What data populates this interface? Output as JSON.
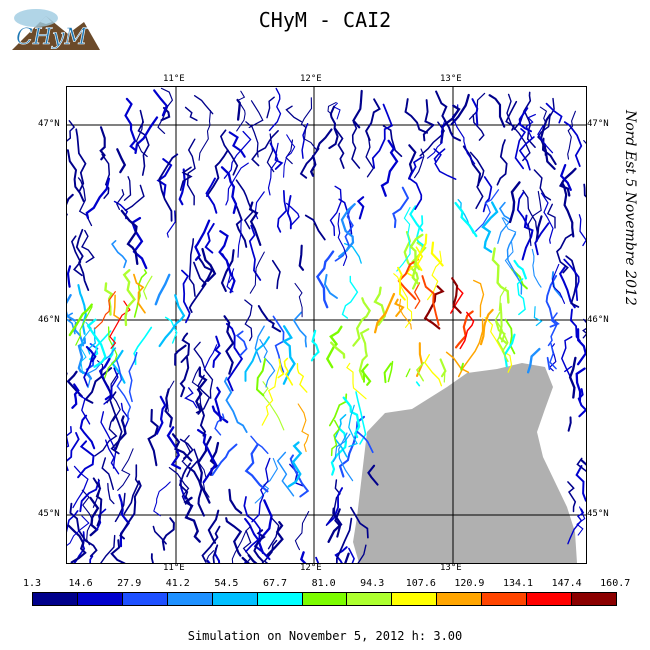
{
  "header": {
    "title": "CHyM - CAI2",
    "logo_text": "CHyM"
  },
  "map": {
    "longitude_ticks": [
      "11°E",
      "12°E",
      "13°E"
    ],
    "latitude_ticks": [
      "47°N",
      "46°N",
      "45°N"
    ],
    "sea_color": "#b0b0b0",
    "frame_color": "#000000"
  },
  "side_label": "Nord Est 5 Novembre 2012",
  "colorbar": {
    "labels": [
      "1.3",
      "14.6",
      "27.9",
      "41.2",
      "54.5",
      "67.7",
      "81.0",
      "94.3",
      "107.6",
      "120.9",
      "134.1",
      "147.4",
      "160.7"
    ],
    "colors": [
      "#00008b",
      "#0000cd",
      "#1e50ff",
      "#1e90ff",
      "#00bfff",
      "#00ffff",
      "#7cfc00",
      "#adff2f",
      "#ffff00",
      "#ffa500",
      "#ff4500",
      "#ff0000",
      "#8b0000"
    ]
  },
  "footer": "Simulation on November 5, 2012 h: 3.00"
}
